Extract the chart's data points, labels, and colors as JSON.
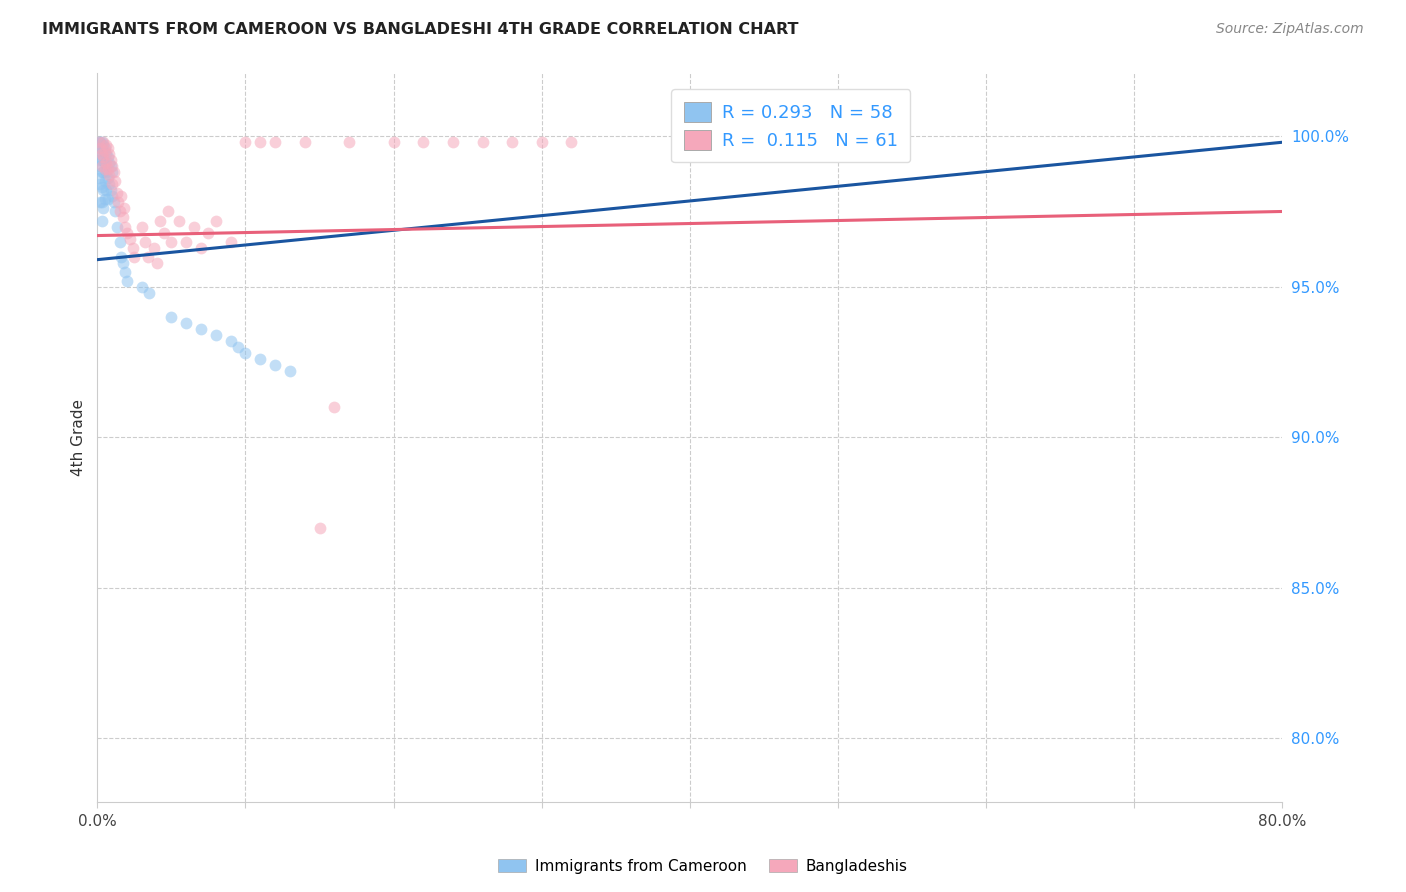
{
  "title": "IMMIGRANTS FROM CAMEROON VS BANGLADESHI 4TH GRADE CORRELATION CHART",
  "source": "Source: ZipAtlas.com",
  "ylabel": "4th Grade",
  "ytick_labels": [
    "80.0%",
    "85.0%",
    "90.0%",
    "95.0%",
    "100.0%"
  ],
  "ytick_values": [
    0.8,
    0.85,
    0.9,
    0.95,
    1.0
  ],
  "xlim": [
    0.0,
    0.8
  ],
  "ylim": [
    0.779,
    1.021
  ],
  "blue_color": "#90C4F0",
  "pink_color": "#F5A8BB",
  "blue_line_color": "#1A55A0",
  "pink_line_color": "#E8607A",
  "marker_size": 72,
  "blue_alpha": 0.55,
  "pink_alpha": 0.55,
  "blue_x": [
    0.001,
    0.001,
    0.001,
    0.001,
    0.002,
    0.002,
    0.002,
    0.002,
    0.002,
    0.003,
    0.003,
    0.003,
    0.003,
    0.003,
    0.003,
    0.003,
    0.004,
    0.004,
    0.004,
    0.004,
    0.004,
    0.005,
    0.005,
    0.005,
    0.005,
    0.006,
    0.006,
    0.006,
    0.007,
    0.007,
    0.007,
    0.008,
    0.008,
    0.009,
    0.009,
    0.01,
    0.01,
    0.011,
    0.012,
    0.013,
    0.015,
    0.016,
    0.017,
    0.019,
    0.02,
    0.03,
    0.035,
    0.05,
    0.06,
    0.07,
    0.08,
    0.09,
    0.095,
    0.1,
    0.11,
    0.12,
    0.13
  ],
  "blue_y": [
    0.998,
    0.996,
    0.992,
    0.986,
    0.998,
    0.995,
    0.99,
    0.984,
    0.978,
    0.998,
    0.996,
    0.992,
    0.988,
    0.983,
    0.978,
    0.972,
    0.997,
    0.993,
    0.988,
    0.982,
    0.976,
    0.996,
    0.991,
    0.985,
    0.979,
    0.994,
    0.988,
    0.982,
    0.993,
    0.986,
    0.979,
    0.991,
    0.984,
    0.99,
    0.982,
    0.988,
    0.98,
    0.978,
    0.975,
    0.97,
    0.965,
    0.96,
    0.958,
    0.955,
    0.952,
    0.95,
    0.948,
    0.94,
    0.938,
    0.936,
    0.934,
    0.932,
    0.93,
    0.928,
    0.926,
    0.924,
    0.922
  ],
  "pink_x": [
    0.001,
    0.002,
    0.003,
    0.003,
    0.004,
    0.004,
    0.005,
    0.005,
    0.006,
    0.006,
    0.007,
    0.007,
    0.008,
    0.008,
    0.009,
    0.01,
    0.01,
    0.011,
    0.012,
    0.013,
    0.014,
    0.015,
    0.016,
    0.017,
    0.018,
    0.019,
    0.02,
    0.022,
    0.024,
    0.025,
    0.03,
    0.032,
    0.034,
    0.038,
    0.04,
    0.042,
    0.045,
    0.048,
    0.05,
    0.055,
    0.06,
    0.065,
    0.07,
    0.075,
    0.08,
    0.09,
    0.1,
    0.11,
    0.12,
    0.14,
    0.15,
    0.16,
    0.17,
    0.2,
    0.22,
    0.24,
    0.26,
    0.28,
    0.3,
    0.32
  ],
  "pink_y": [
    0.998,
    0.996,
    0.994,
    0.99,
    0.998,
    0.993,
    0.995,
    0.989,
    0.997,
    0.991,
    0.996,
    0.989,
    0.994,
    0.987,
    0.992,
    0.99,
    0.984,
    0.988,
    0.985,
    0.981,
    0.978,
    0.975,
    0.98,
    0.973,
    0.976,
    0.97,
    0.968,
    0.966,
    0.963,
    0.96,
    0.97,
    0.965,
    0.96,
    0.963,
    0.958,
    0.972,
    0.968,
    0.975,
    0.965,
    0.972,
    0.965,
    0.97,
    0.963,
    0.968,
    0.972,
    0.965,
    0.998,
    0.998,
    0.998,
    0.998,
    0.87,
    0.91,
    0.998,
    0.998,
    0.998,
    0.998,
    0.998,
    0.998,
    0.998,
    0.998
  ],
  "blue_line_x": [
    0.0,
    0.8
  ],
  "blue_line_y": [
    0.959,
    0.998
  ],
  "pink_line_x": [
    0.0,
    0.8
  ],
  "pink_line_y": [
    0.967,
    0.975
  ]
}
